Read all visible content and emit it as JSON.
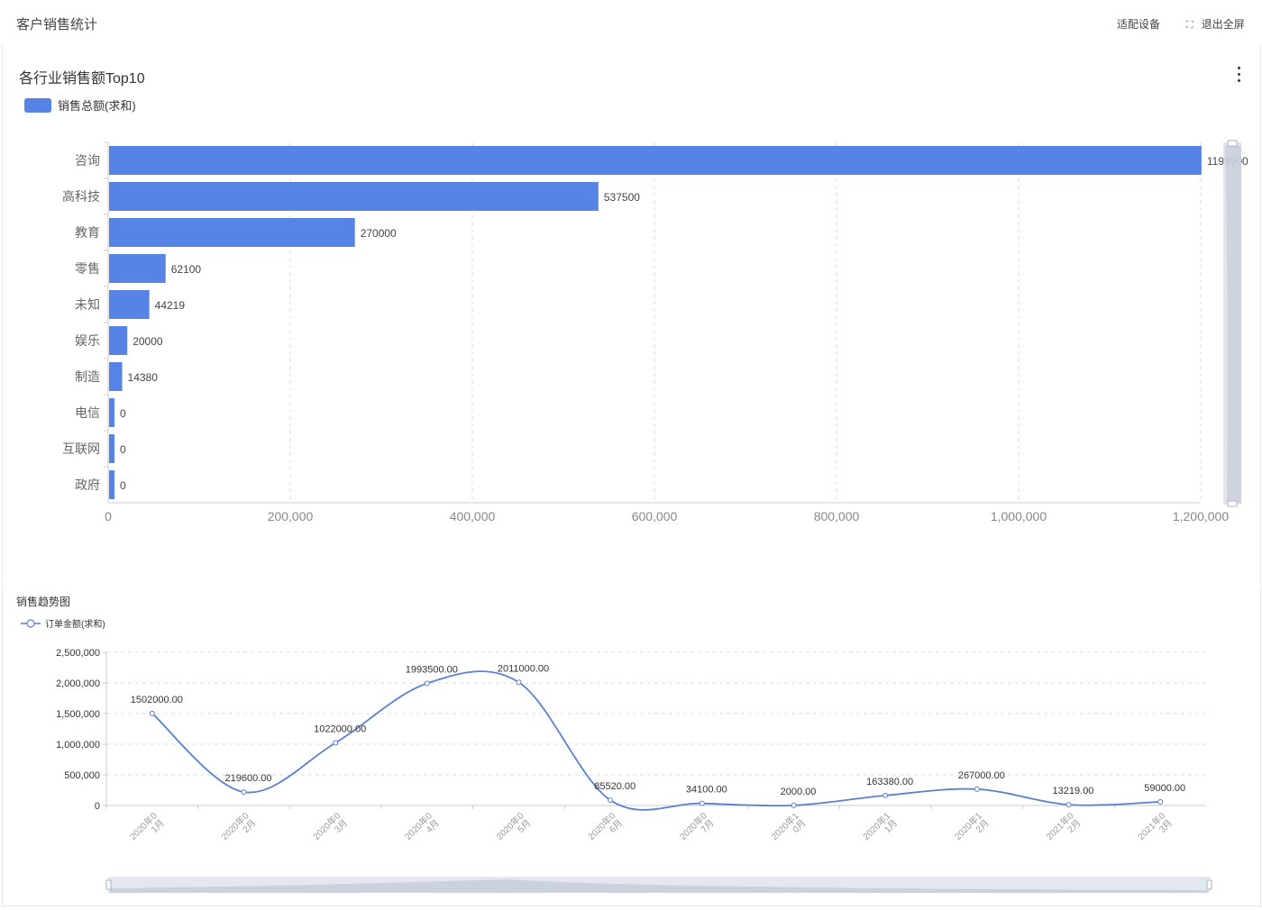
{
  "page": {
    "title": "客户销售统计"
  },
  "header": {
    "fit_label": "适配设备",
    "exit_label": "退出全屏"
  },
  "colors": {
    "bar": "#5583e6",
    "line": "#5b7fd1",
    "grid": "#dddddd",
    "dataZoom": "#d7dde8"
  },
  "chart_data": [
    {
      "type": "bar",
      "orientation": "horizontal",
      "title": "各行业销售额Top10",
      "legend": [
        "销售总额(求和)"
      ],
      "categories": [
        "咨询",
        "高科技",
        "教育",
        "零售",
        "未知",
        "娱乐",
        "制造",
        "电信",
        "互联网",
        "政府"
      ],
      "values": [
        1199900,
        537500,
        270000,
        62100,
        44219,
        20000,
        14380,
        0,
        0,
        0
      ],
      "value_labels": [
        "1199900",
        "537500",
        "270000",
        "62100",
        "44219",
        "20000",
        "14380",
        "0",
        "0",
        "0"
      ],
      "xlim": [
        0,
        1200000
      ],
      "xticks": [
        0,
        200000,
        400000,
        600000,
        800000,
        1000000,
        1200000
      ],
      "xtick_labels": [
        "0",
        "200,000",
        "400,000",
        "600,000",
        "800,000",
        "1,000,000",
        "1,200,000"
      ],
      "grid": true,
      "legend_position": "top-left"
    },
    {
      "type": "line",
      "smooth": true,
      "title": "销售趋势图",
      "legend": [
        "订单金额(求和)"
      ],
      "categories": [
        [
          "2020年0",
          "1月"
        ],
        [
          "2020年0",
          "2月"
        ],
        [
          "2020年0",
          "3月"
        ],
        [
          "2020年0",
          "4月"
        ],
        [
          "2020年0",
          "5月"
        ],
        [
          "2020年0",
          "6月"
        ],
        [
          "2020年0",
          "7月"
        ],
        [
          "2020年1",
          "0月"
        ],
        [
          "2020年1",
          "1月"
        ],
        [
          "2020年1",
          "2月"
        ],
        [
          "2021年0",
          "2月"
        ],
        [
          "2021年0",
          "3月"
        ]
      ],
      "values": [
        1502000,
        219600,
        1022000,
        1993500,
        2011000,
        85520,
        34100,
        2000,
        163380,
        267000,
        13219,
        59000
      ],
      "value_labels": [
        "1502000.00",
        "219600.00",
        "1022000.00",
        "1993500.00",
        "2011000.00",
        "85520.00",
        "34100.00",
        "2000.00",
        "163380.00",
        "267000.00",
        "13219.00",
        "59000.00"
      ],
      "ylim": [
        0,
        2500000
      ],
      "yticks": [
        0,
        500000,
        1000000,
        1500000,
        2000000,
        2500000
      ],
      "ytick_labels": [
        "0",
        "500,000",
        "1,000,000",
        "1,500,000",
        "2,000,000",
        "2,500,000"
      ],
      "grid": true,
      "legend_position": "top-left"
    }
  ]
}
